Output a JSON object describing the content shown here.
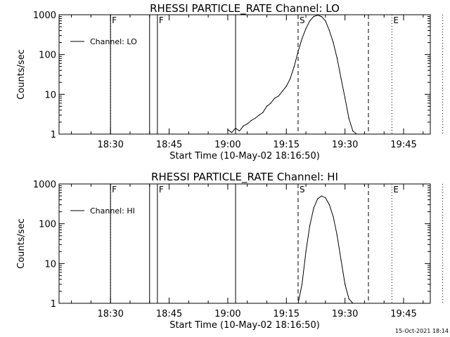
{
  "footer_timestamp": "15-Oct-2021 18:14",
  "chart_data": [
    {
      "type": "line",
      "title": "RHESSI PARTICLE_RATE Channel: LO",
      "xlabel": "Start Time (10-May-02 18:16:50)",
      "ylabel": "Counts/sec",
      "y_scale": "log",
      "xlim_minutes_after_start": [
        0,
        95
      ],
      "ylim": [
        1,
        1000
      ],
      "x_tick_labels": [
        "18:30",
        "18:45",
        "19:00",
        "19:15",
        "19:30",
        "19:45"
      ],
      "y_tick_labels": [
        "1",
        "10",
        "100",
        "1000"
      ],
      "legend": {
        "position": "top-left",
        "entries": [
          "Channel: LO"
        ]
      },
      "vertical_markers": [
        {
          "label": "",
          "style": "dotted",
          "time": "18:30"
        },
        {
          "label": "F",
          "style": "solid",
          "time": "18:30"
        },
        {
          "label": "",
          "style": "solid",
          "time": "18:40"
        },
        {
          "label": "F",
          "style": "solid",
          "time": "18:42"
        },
        {
          "label": "",
          "style": "solid",
          "time": "19:02"
        },
        {
          "label": "S",
          "style": "dashed",
          "time": "19:18"
        },
        {
          "label": "",
          "style": "dashed",
          "time": "19:36"
        },
        {
          "label": "E",
          "style": "dotted",
          "time": "19:42"
        },
        {
          "label": "",
          "style": "dotted",
          "time": "19:55"
        }
      ],
      "series": [
        {
          "name": "Channel: LO",
          "x": [
            "19:00",
            "19:01",
            "19:02",
            "19:03",
            "19:04",
            "19:05",
            "19:06",
            "19:07",
            "19:08",
            "19:09",
            "19:10",
            "19:11",
            "19:12",
            "19:13",
            "19:14",
            "19:15",
            "19:16",
            "19:17",
            "19:18",
            "19:19",
            "19:20",
            "19:21",
            "19:22",
            "19:23",
            "19:24",
            "19:25",
            "19:26",
            "19:27",
            "19:28",
            "19:29",
            "19:30",
            "19:31",
            "19:32",
            "19:33"
          ],
          "y": [
            1.3,
            1.1,
            1.4,
            1.2,
            1.6,
            1.8,
            2.2,
            2.5,
            3.0,
            3.5,
            5,
            6,
            8,
            9,
            12,
            16,
            25,
            50,
            120,
            250,
            450,
            700,
            900,
            980,
            900,
            700,
            400,
            200,
            80,
            25,
            8,
            2.5,
            1.2,
            1
          ]
        }
      ]
    },
    {
      "type": "line",
      "title": "RHESSI PARTICLE_RATE Channel: HI",
      "xlabel": "Start Time (10-May-02 18:16:50)",
      "ylabel": "Counts/sec",
      "y_scale": "log",
      "xlim_minutes_after_start": [
        0,
        95
      ],
      "ylim": [
        1,
        1000
      ],
      "x_tick_labels": [
        "18:30",
        "18:45",
        "19:00",
        "19:15",
        "19:30",
        "19:45"
      ],
      "y_tick_labels": [
        "1",
        "10",
        "100",
        "1000"
      ],
      "legend": {
        "position": "top-left",
        "entries": [
          "Channel: HI"
        ]
      },
      "vertical_markers": [
        {
          "label": "",
          "style": "dotted",
          "time": "18:30"
        },
        {
          "label": "F",
          "style": "solid",
          "time": "18:30"
        },
        {
          "label": "",
          "style": "solid",
          "time": "18:40"
        },
        {
          "label": "F",
          "style": "solid",
          "time": "18:42"
        },
        {
          "label": "",
          "style": "solid",
          "time": "19:02"
        },
        {
          "label": "S",
          "style": "dashed",
          "time": "19:18"
        },
        {
          "label": "",
          "style": "dashed",
          "time": "19:36"
        },
        {
          "label": "E",
          "style": "dotted",
          "time": "19:42"
        },
        {
          "label": "",
          "style": "dotted",
          "time": "19:55"
        }
      ],
      "series": [
        {
          "name": "Channel: HI",
          "x": [
            "19:18",
            "19:19",
            "19:20",
            "19:21",
            "19:22",
            "19:23",
            "19:24",
            "19:25",
            "19:26",
            "19:27",
            "19:28",
            "19:29",
            "19:30",
            "19:31",
            "19:32"
          ],
          "y": [
            1,
            3,
            20,
            90,
            250,
            420,
            500,
            450,
            300,
            150,
            50,
            12,
            3,
            1.3,
            1
          ]
        }
      ]
    }
  ]
}
